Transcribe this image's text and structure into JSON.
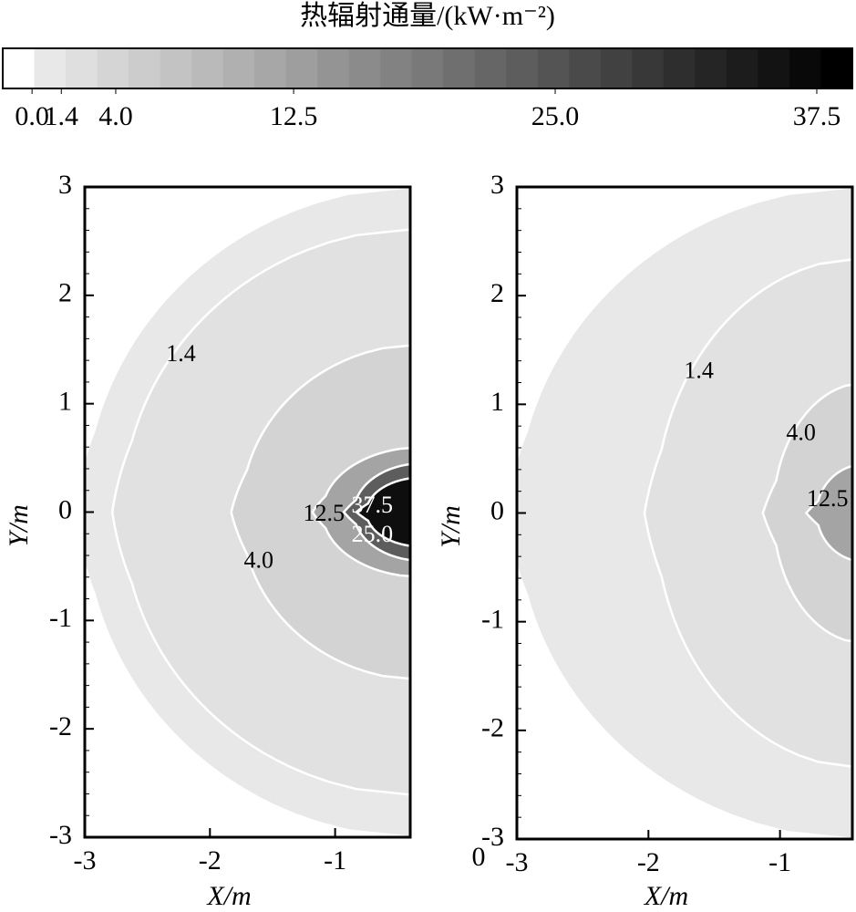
{
  "chart_data": {
    "type": "contour",
    "colorbar": {
      "title": "热辐射通量/(kW·m⁻²)",
      "lim": [
        -1.4,
        39.2
      ],
      "ticks": [
        {
          "value": 0,
          "label": "0.0"
        },
        1.4,
        {
          "value": 4,
          "label": "4.0"
        },
        12.5,
        {
          "value": 25,
          "label": "25.0"
        },
        37.5
      ]
    },
    "panels": [
      {
        "xlabel": "X/m",
        "ylabel": "Y/m",
        "xlim": [
          -3,
          -0.4
        ],
        "ylim": [
          -3,
          3
        ],
        "xticks": [
          -3,
          -2,
          -1
        ],
        "yticks": [
          3,
          2,
          1,
          0,
          -1,
          -2,
          -3
        ],
        "contours": [
          {
            "level": 0,
            "x0": -3,
            "y_edge": 3
          },
          {
            "level": 1.4,
            "x0": -2.7,
            "y_edge": 2.62
          },
          {
            "level": 4,
            "level_label": "4.0",
            "x0": -1.75,
            "y_edge": 1.55
          },
          {
            "level": 12.5,
            "x0": -1.1,
            "y_edge": 0.6
          },
          {
            "level": 25,
            "level_label": "25.0",
            "x0": -0.85,
            "y_edge": 0.45
          },
          {
            "level": 37.5,
            "x0": -0.75,
            "y_edge": 0.32
          }
        ]
      },
      {
        "xlabel": "X/m",
        "ylabel": "Y/m",
        "xlim": [
          -3,
          -0.45
        ],
        "ylim": [
          -3,
          3
        ],
        "xticks": [
          -3,
          -2,
          -1
        ],
        "yticks": [
          3,
          2,
          1,
          0,
          -1,
          -2,
          -3
        ],
        "corner_label": "0",
        "contours": [
          {
            "level": 0,
            "x0": -3,
            "y_edge": 3
          },
          {
            "level": 1.4,
            "x0": -1.95,
            "y_edge": 2.35
          },
          {
            "level": 4,
            "level_label": "4.0",
            "x0": -1.05,
            "y_edge": 1.2
          },
          {
            "level": 12.5,
            "x0": -0.72,
            "y_edge": 0.45
          }
        ]
      }
    ]
  }
}
